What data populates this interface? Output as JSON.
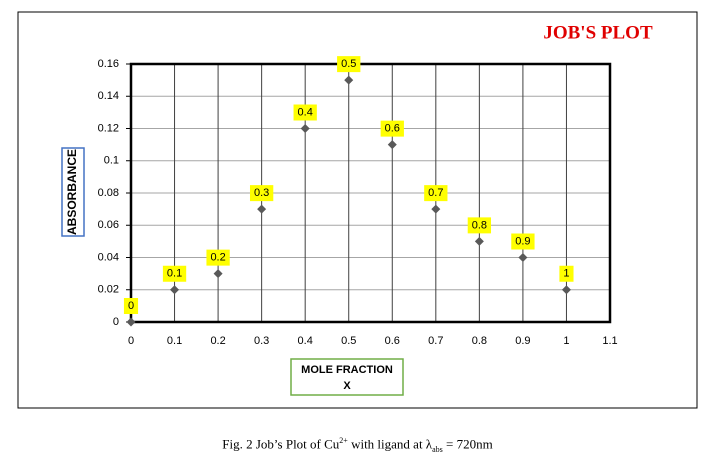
{
  "chart_data": {
    "type": "scatter",
    "title": "JOB'S PLOT",
    "x_label": [
      "MOLE FRACTION",
      "X"
    ],
    "y_label": "ABSORBANCE",
    "x": [
      0,
      0.1,
      0.2,
      0.3,
      0.4,
      0.5,
      0.6,
      0.7,
      0.8,
      0.9,
      1
    ],
    "values": [
      0,
      0.02,
      0.03,
      0.07,
      0.12,
      0.15,
      0.11,
      0.07,
      0.05,
      0.04,
      0.02
    ],
    "color": "#595959",
    "label_color": "#ffff00",
    "xlim": [
      0,
      1.1
    ],
    "xticks": [
      0,
      0.1,
      0.2,
      0.3,
      0.4,
      0.5,
      0.6,
      0.7,
      0.8,
      0.9,
      1,
      1.1
    ],
    "ylim": [
      0,
      0.16
    ],
    "yticks": [
      0,
      0.02,
      0.04,
      0.06,
      0.08,
      0.1,
      0.12,
      0.14,
      0.16
    ],
    "grid": true
  },
  "caption": {
    "prefix": "Fig. 2  Job’s Plot of Cu",
    "sup": "2+",
    "mid": " with ligand at λ",
    "sub": "abs",
    "suffix": " = 720nm"
  }
}
